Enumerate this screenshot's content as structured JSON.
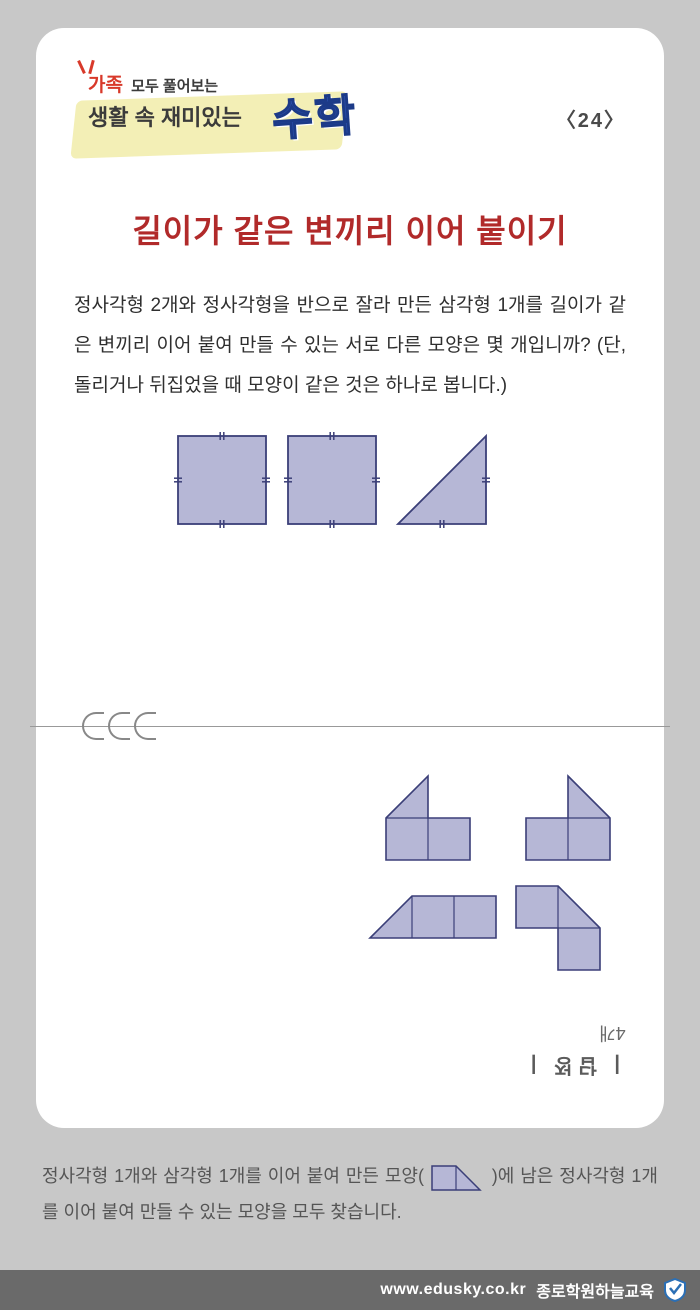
{
  "header": {
    "family_prefix": "가족",
    "family_rest": "모두 풀어보는",
    "life_line": "생활 속 재미있는",
    "math_word": "수학",
    "page_tag": "〈24〉"
  },
  "title": "길이가 같은 변끼리 이어 붙이기",
  "problem": "정사각형 2개와 정사각형을 반으로 잘라 만든 삼각형 1개를 길이가 같은 변끼리 이어 붙여 만들 수 있는 서로 다른 모양은 몇 개입니까? (단, 돌리거나 뒤집었을 때 모양이 같은 것은 하나로 봅니다.)",
  "shapes": {
    "type": "infographic",
    "fill": "#b6b7d6",
    "stroke": "#3b3f78",
    "stroke_width": 1.8,
    "unit": 88,
    "items": [
      "square",
      "square",
      "triangle_right"
    ]
  },
  "answer": {
    "type": "diagram",
    "fill": "#b6b7d6",
    "stroke": "#3b3f78",
    "unit": 42,
    "count_text": "4개",
    "label": "| 정답 |"
  },
  "bottom_note": {
    "part1": "정사각형 1개와 삼각형 1개를 이어 붙여 만든 모양(",
    "part2": ")에 남은 정사각형 1개를 이어 붙여 만들 수 있는 모양을 모두 찾습니다."
  },
  "footer": {
    "url": "www.edusky.co.kr",
    "brand": "종로학원하늘교육"
  },
  "colors": {
    "page_bg": "#c8c8c8",
    "card_bg": "#ffffff",
    "title_color": "#b12a2a",
    "text_color": "#2f2f2f",
    "accent_red": "#d8392a",
    "accent_blue": "#2b4ea8",
    "brush": "#e9e17a",
    "footer_bg": "#6a6a6a"
  }
}
